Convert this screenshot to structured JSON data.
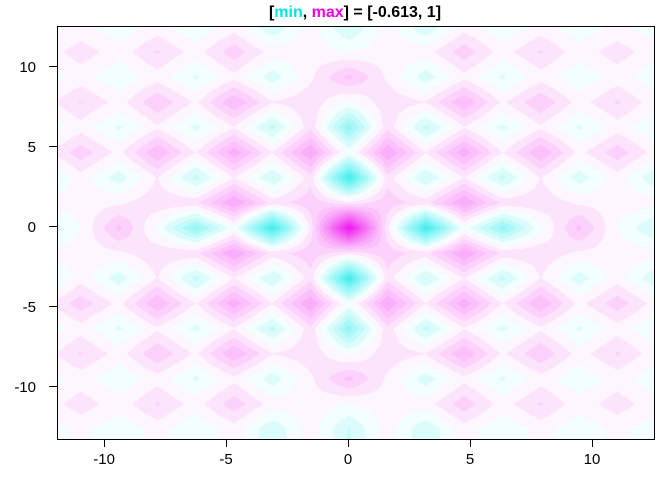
{
  "title": {
    "full_text": "[min, max] = [-0.613, 1]",
    "parts": [
      {
        "text": "[",
        "color": "#000000"
      },
      {
        "text": "min",
        "color": "#00E5E5"
      },
      {
        "text": ", ",
        "color": "#000000"
      },
      {
        "text": "max",
        "color": "#EE00EE"
      },
      {
        "text": "] = [-0.613, 1]",
        "color": "#000000"
      }
    ]
  },
  "chart_data": {
    "type": "heatmap",
    "title": "[min, max] = [-0.613, 1]",
    "stats": {
      "min": -0.613,
      "max": 1
    },
    "xlabel": "",
    "ylabel": "",
    "x_ticks": [
      "-10",
      "-5",
      "0",
      "5",
      "10"
    ],
    "y_ticks": [
      "-10",
      "-5",
      "0",
      "5",
      "10"
    ],
    "x_tick_values": [
      -10,
      -5,
      0,
      5,
      10
    ],
    "y_tick_values": [
      -10,
      -5,
      0,
      5,
      10
    ],
    "xlim": [
      -11.93,
      12.5
    ],
    "ylim": [
      -13.19,
      12.56
    ],
    "grid_on": false,
    "legend": null,
    "palette": {
      "type": "diverging-cyan-white-magenta",
      "negative_end": "#3EEEEE",
      "mid": "#FFFFFF",
      "positive_end": "#EE11EE",
      "anchor": {
        "neg": -0.613,
        "pos": 1.0
      },
      "quant_step": 0.075
    },
    "field": {
      "description": "z values sampled on a lattice with spacing pi/2; full 17x17 grid is the 4-fold mirror of this 9x9 quadrant (index 0 = center, x and y symmetric). Peak 1 at origin, troughs -0.613 at (±pi,0),(0,±pi), pink ridge web on half-integer-pi lines, inward-pointing chevron maxima at (±3pi,0),(0,±3pi).",
      "spacing": 1.5708,
      "symmetry": "reflect-quadrant",
      "quadrant": [
        [
          1.0,
          0.1,
          -0.613,
          -0.02,
          -0.35,
          -0.02,
          0.25,
          0.0,
          -0.16
        ],
        [
          0.1,
          0.2,
          0.12,
          0.38,
          0.13,
          0.13,
          0.06,
          0.04,
          0.04
        ],
        [
          -0.613,
          0.12,
          -0.16,
          0.08,
          -0.18,
          0.08,
          -0.12,
          0.04,
          -0.14
        ],
        [
          -0.02,
          0.38,
          0.08,
          0.35,
          0.07,
          0.3,
          0.05,
          0.2,
          0.04
        ],
        [
          -0.35,
          0.13,
          -0.18,
          0.07,
          -0.1,
          0.06,
          -0.09,
          0.04,
          -0.07
        ],
        [
          -0.02,
          0.13,
          0.08,
          0.3,
          0.06,
          0.22,
          0.04,
          0.16,
          0.03
        ],
        [
          0.25,
          0.06,
          -0.12,
          0.05,
          -0.09,
          0.04,
          -0.06,
          0.03,
          -0.05
        ],
        [
          0.0,
          0.04,
          0.04,
          0.2,
          0.04,
          0.16,
          0.03,
          0.12,
          0.02
        ],
        [
          -0.16,
          0.04,
          -0.14,
          0.04,
          -0.07,
          0.03,
          -0.05,
          0.02,
          -0.04
        ]
      ]
    },
    "axis_color": "#000000",
    "background": "#FFFFFF"
  }
}
